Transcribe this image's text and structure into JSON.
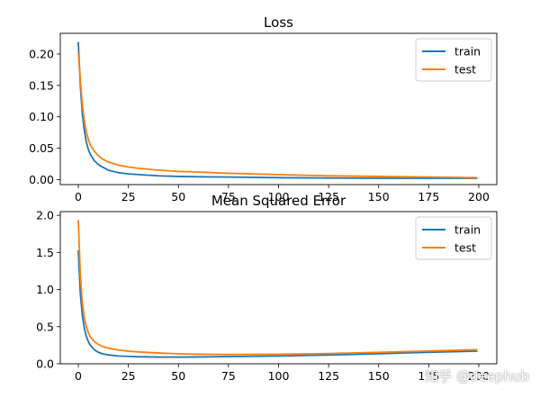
{
  "chart_data": [
    {
      "type": "line",
      "title": "Loss",
      "xlim": [
        -9,
        209
      ],
      "ylim": [
        -0.008,
        0.233
      ],
      "xticks": [
        0,
        25,
        50,
        75,
        100,
        125,
        150,
        175,
        200
      ],
      "xtick_labels": [
        "0",
        "25",
        "50",
        "75",
        "100",
        "125",
        "150",
        "175",
        "200"
      ],
      "yticks": [
        0.0,
        0.05,
        0.1,
        0.15,
        0.2
      ],
      "ytick_labels": [
        "0.00",
        "0.05",
        "0.10",
        "0.15",
        "0.20"
      ],
      "legend_position": "top-right",
      "series": [
        {
          "name": "train",
          "color": "#1f77b4",
          "x": [
            0,
            1,
            2,
            3,
            4,
            5,
            6,
            8,
            10,
            12,
            15,
            20,
            25,
            30,
            40,
            50,
            60,
            75,
            100,
            125,
            150,
            175,
            199
          ],
          "y": [
            0.218,
            0.15,
            0.105,
            0.078,
            0.06,
            0.048,
            0.04,
            0.03,
            0.024,
            0.02,
            0.015,
            0.011,
            0.009,
            0.008,
            0.006,
            0.005,
            0.0045,
            0.004,
            0.003,
            0.0025,
            0.002,
            0.002,
            0.002
          ]
        },
        {
          "name": "test",
          "color": "#ff7f0e",
          "x": [
            0,
            1,
            2,
            3,
            4,
            5,
            6,
            8,
            10,
            12,
            15,
            20,
            25,
            30,
            40,
            50,
            60,
            75,
            100,
            125,
            150,
            175,
            199
          ],
          "y": [
            0.202,
            0.16,
            0.12,
            0.093,
            0.076,
            0.064,
            0.055,
            0.045,
            0.038,
            0.033,
            0.028,
            0.023,
            0.02,
            0.018,
            0.015,
            0.013,
            0.012,
            0.01,
            0.008,
            0.006,
            0.005,
            0.004,
            0.003
          ]
        }
      ]
    },
    {
      "type": "line",
      "title": "Mean Squared Error",
      "xlim": [
        -9,
        209
      ],
      "ylim": [
        0.0,
        2.05
      ],
      "xticks": [
        0,
        25,
        50,
        75,
        100,
        125,
        150,
        175,
        200
      ],
      "xtick_labels": [
        "0",
        "25",
        "50",
        "75",
        "100",
        "125",
        "150",
        "175",
        "200"
      ],
      "yticks": [
        0.0,
        0.5,
        1.0,
        1.5,
        2.0
      ],
      "ytick_labels": [
        "0.0",
        "0.5",
        "1.0",
        "1.5",
        "2.0"
      ],
      "legend_position": "top-right",
      "series": [
        {
          "name": "train",
          "color": "#1f77b4",
          "x": [
            0,
            1,
            2,
            3,
            4,
            5,
            6,
            8,
            10,
            12,
            15,
            20,
            25,
            30,
            40,
            50,
            60,
            75,
            100,
            125,
            150,
            175,
            199
          ],
          "y": [
            1.52,
            0.95,
            0.65,
            0.48,
            0.37,
            0.3,
            0.25,
            0.19,
            0.155,
            0.135,
            0.12,
            0.105,
            0.1,
            0.095,
            0.09,
            0.09,
            0.092,
            0.097,
            0.105,
            0.118,
            0.135,
            0.155,
            0.17
          ]
        },
        {
          "name": "test",
          "color": "#ff7f0e",
          "x": [
            0,
            1,
            2,
            3,
            4,
            5,
            6,
            8,
            10,
            12,
            15,
            20,
            25,
            30,
            40,
            50,
            60,
            75,
            100,
            125,
            150,
            175,
            199
          ],
          "y": [
            1.93,
            1.2,
            0.82,
            0.62,
            0.5,
            0.42,
            0.36,
            0.3,
            0.26,
            0.235,
            0.21,
            0.185,
            0.17,
            0.16,
            0.145,
            0.135,
            0.128,
            0.125,
            0.128,
            0.138,
            0.155,
            0.172,
            0.19
          ]
        }
      ]
    }
  ],
  "watermark": "知乎 @deephub"
}
